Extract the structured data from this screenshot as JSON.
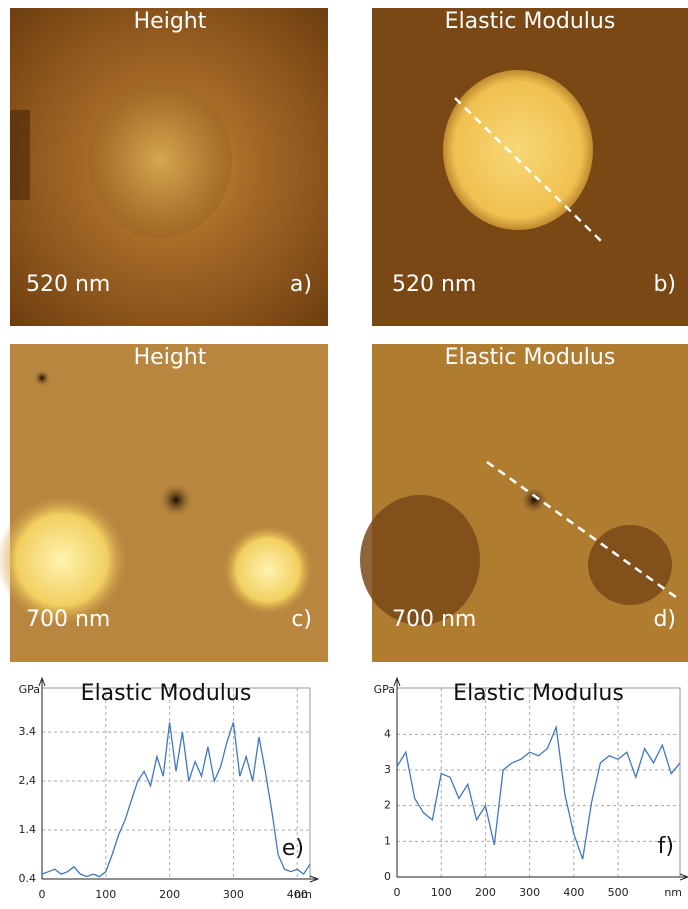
{
  "panels": [
    {
      "title": "Height",
      "scale": "520 nm",
      "label": "a)"
    },
    {
      "title": "Elastic Modulus",
      "scale": "520 nm",
      "label": "b)"
    },
    {
      "title": "Height",
      "scale": "700 nm",
      "label": "c)"
    },
    {
      "title": "Elastic Modulus",
      "scale": "700 nm",
      "label": "d)"
    }
  ],
  "chart_data": [
    {
      "type": "line",
      "title": "Elastic Modulus",
      "y_label": "GPa",
      "x_label": "nm",
      "panel_label": "e)",
      "color": "#3f78c0",
      "x": [
        0,
        10,
        20,
        30,
        40,
        50,
        60,
        70,
        80,
        90,
        100,
        110,
        120,
        130,
        140,
        150,
        160,
        170,
        180,
        190,
        200,
        210,
        220,
        230,
        240,
        250,
        260,
        270,
        280,
        290,
        300,
        310,
        320,
        330,
        340,
        350,
        360,
        370,
        380,
        390,
        400,
        410,
        420
      ],
      "values": [
        0.5,
        0.55,
        0.6,
        0.5,
        0.55,
        0.65,
        0.5,
        0.45,
        0.5,
        0.45,
        0.55,
        0.9,
        1.3,
        1.6,
        2.0,
        2.4,
        2.6,
        2.3,
        2.9,
        2.5,
        3.6,
        2.6,
        3.4,
        2.4,
        2.8,
        2.5,
        3.1,
        2.4,
        2.7,
        3.2,
        3.6,
        2.5,
        2.9,
        2.4,
        3.3,
        2.6,
        1.8,
        0.9,
        0.6,
        0.55,
        0.6,
        0.5,
        0.7
      ],
      "xlim": [
        0,
        420
      ],
      "ylim": [
        0.4,
        4.3
      ],
      "xticks": [
        0,
        100,
        200,
        300,
        400
      ],
      "yticks": [
        0.4,
        1.4,
        {
          "value": 2.4,
          "label": "2,4"
        },
        3.4
      ],
      "grid": true
    },
    {
      "type": "line",
      "title": "Elastic Modulus",
      "y_label": "GPa",
      "x_label": "nm",
      "panel_label": "f)",
      "color": "#3f78c0",
      "x": [
        0,
        20,
        40,
        60,
        80,
        100,
        120,
        140,
        160,
        180,
        200,
        220,
        240,
        260,
        280,
        300,
        320,
        340,
        360,
        380,
        400,
        420,
        440,
        460,
        480,
        500,
        520,
        540,
        560,
        580,
        600,
        620,
        640
      ],
      "values": [
        3.1,
        3.5,
        2.2,
        1.8,
        1.6,
        2.9,
        2.8,
        2.2,
        2.6,
        1.6,
        2.0,
        0.9,
        3.0,
        3.2,
        3.3,
        3.5,
        3.4,
        3.6,
        4.2,
        2.3,
        1.2,
        0.5,
        2.1,
        3.2,
        3.4,
        3.3,
        3.5,
        2.8,
        3.6,
        3.2,
        3.7,
        2.9,
        3.2
      ],
      "xlim": [
        0,
        640
      ],
      "ylim": [
        0,
        5.3
      ],
      "xticks": [
        0,
        100,
        200,
        300,
        400,
        500
      ],
      "yticks": [
        0,
        1,
        2,
        3,
        4
      ],
      "grid": true
    }
  ]
}
